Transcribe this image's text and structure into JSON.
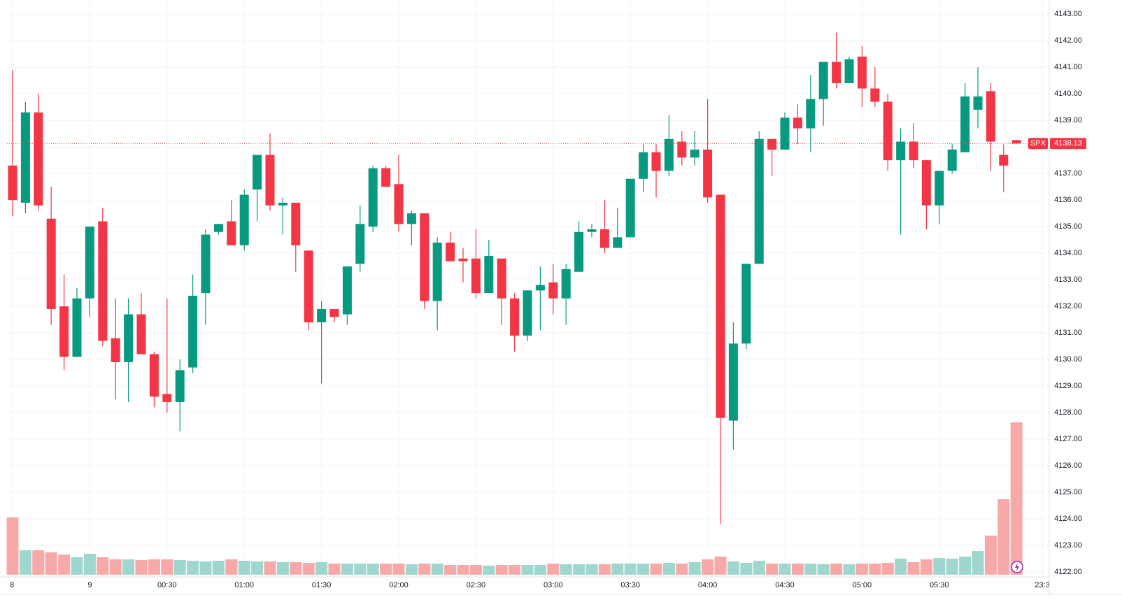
{
  "chart_data": {
    "type": "candlestick",
    "series": {
      "name": "SPX",
      "open": [
        4137.3,
        4135.9,
        4139.3,
        4135.3,
        4132.0,
        4130.1,
        4132.3,
        4135.2,
        4130.8,
        4129.9,
        4131.7,
        4130.2,
        4128.7,
        4128.4,
        4129.7,
        4132.5,
        4134.8,
        4135.2,
        4134.3,
        4136.4,
        4137.7,
        4135.8,
        4135.9,
        4134.1,
        4131.4,
        4131.9,
        4131.7,
        4133.6,
        4135.0,
        4137.2,
        4136.6,
        4135.1,
        4135.5,
        4132.2,
        4134.4,
        4133.8,
        4133.8,
        4132.5,
        4133.8,
        4132.3,
        4130.9,
        4132.6,
        4132.9,
        4132.3,
        4133.3,
        4134.8,
        4134.9,
        4134.2,
        4134.6,
        4136.8,
        4137.8,
        4137.1,
        4138.2,
        4137.6,
        4137.9,
        4136.2,
        4127.7,
        4130.6,
        4133.6,
        4138.3,
        4137.9,
        4139.1,
        4138.7,
        4139.8,
        4141.2,
        4140.4,
        4141.4,
        4140.2,
        4139.7,
        4137.5,
        4138.2,
        4137.5,
        4135.8,
        4137.1,
        4137.8,
        4139.4,
        4140.1,
        4137.7,
        4138.26
      ],
      "high": [
        4140.9,
        4139.7,
        4140.0,
        4136.5,
        4133.2,
        4132.7,
        4135.0,
        4135.7,
        4132.3,
        4132.3,
        4132.5,
        4130.3,
        4132.3,
        4130.0,
        4133.2,
        4134.9,
        4135.1,
        4136.0,
        4136.4,
        4137.7,
        4138.5,
        4136.1,
        4135.9,
        4134.1,
        4132.2,
        4131.9,
        4133.5,
        4135.8,
        4137.3,
        4137.3,
        4137.7,
        4135.6,
        4135.5,
        4134.6,
        4134.8,
        4134.2,
        4134.9,
        4134.5,
        4133.8,
        4132.5,
        4132.6,
        4133.5,
        4133.6,
        4133.6,
        4135.2,
        4135.1,
        4136.0,
        4135.7,
        4136.8,
        4138.1,
        4138.1,
        4139.2,
        4138.6,
        4138.6,
        4139.8,
        4136.2,
        4131.4,
        4133.6,
        4138.6,
        4138.3,
        4139.3,
        4139.6,
        4140.7,
        4141.2,
        4142.3,
        4141.4,
        4141.8,
        4141.0,
        4140.0,
        4138.7,
        4138.9,
        4137.5,
        4137.1,
        4138.1,
        4140.4,
        4141.0,
        4140.4,
        4138.1,
        4138.26
      ],
      "low": [
        4135.4,
        4135.5,
        4135.6,
        4131.3,
        4129.6,
        4130.1,
        4131.6,
        4130.5,
        4128.5,
        4128.4,
        4130.2,
        4128.2,
        4128.0,
        4127.3,
        4129.5,
        4131.3,
        4134.7,
        4134.3,
        4134.1,
        4135.2,
        4135.6,
        4134.7,
        4133.3,
        4131.1,
        4129.1,
        4131.4,
        4131.3,
        4133.3,
        4134.8,
        4136.5,
        4134.8,
        4134.3,
        4131.9,
        4131.1,
        4133.7,
        4132.9,
        4132.3,
        4132.5,
        4131.3,
        4130.3,
        4130.7,
        4131.1,
        4131.7,
        4131.3,
        4133.3,
        4134.6,
        4134.0,
        4134.2,
        4134.6,
        4136.3,
        4136.1,
        4136.9,
        4137.3,
        4137.3,
        4135.9,
        4123.8,
        4126.6,
        4130.4,
        4133.6,
        4136.9,
        4137.9,
        4138.1,
        4137.8,
        4138.8,
        4140.2,
        4140.4,
        4139.5,
        4139.5,
        4137.1,
        4134.7,
        4137.2,
        4134.9,
        4135.1,
        4137.0,
        4137.8,
        4138.7,
        4137.1,
        4136.3,
        4138.13
      ],
      "close": [
        4136.0,
        4139.3,
        4135.8,
        4131.9,
        4130.1,
        4132.3,
        4135.0,
        4130.7,
        4129.9,
        4131.7,
        4130.2,
        4128.6,
        4128.4,
        4129.6,
        4132.4,
        4134.7,
        4135.1,
        4134.3,
        4136.2,
        4137.7,
        4135.8,
        4135.9,
        4134.3,
        4131.4,
        4131.9,
        4131.6,
        4133.5,
        4135.1,
        4137.2,
        4136.5,
        4135.1,
        4135.5,
        4132.2,
        4134.4,
        4133.7,
        4133.7,
        4132.5,
        4133.9,
        4132.3,
        4130.9,
        4132.6,
        4132.8,
        4132.3,
        4133.4,
        4134.8,
        4134.9,
        4134.2,
        4134.6,
        4136.8,
        4137.8,
        4137.1,
        4138.3,
        4137.6,
        4137.9,
        4136.1,
        4127.8,
        4130.6,
        4133.6,
        4138.3,
        4137.9,
        4139.1,
        4138.7,
        4139.8,
        4141.2,
        4140.4,
        4141.3,
        4140.2,
        4139.7,
        4137.5,
        4138.2,
        4137.5,
        4135.8,
        4137.1,
        4137.9,
        4139.9,
        4139.9,
        4138.2,
        4137.3,
        4138.13
      ],
      "volume": [
        82,
        35,
        35,
        32,
        29,
        25,
        30,
        25,
        22,
        22,
        21,
        22,
        22,
        21,
        20,
        19,
        20,
        22,
        20,
        19,
        19,
        18,
        18,
        17,
        18,
        16,
        16,
        16,
        16,
        16,
        16,
        15,
        16,
        16,
        14,
        14,
        14,
        13,
        14,
        14,
        14,
        14,
        16,
        15,
        15,
        15,
        15,
        16,
        16,
        16,
        16,
        17,
        16,
        18,
        22,
        26,
        19,
        17,
        20,
        16,
        16,
        16,
        16,
        15,
        16,
        15,
        16,
        16,
        17,
        23,
        18,
        22,
        24,
        23,
        26,
        34,
        56,
        108,
        218
      ]
    },
    "up_color": "#089981",
    "down_color": "#f23645",
    "up_volume_color": "#9fd6cd",
    "down_volume_color": "#f7a9a7",
    "last_price": 4138.13,
    "ylim": [
      4121.82,
      4143.53
    ],
    "yticks": [
      {
        "value": 4122,
        "label": "4122.00"
      },
      {
        "value": 4123,
        "label": "4123.00"
      },
      {
        "value": 4124,
        "label": "4124.00"
      },
      {
        "value": 4125,
        "label": "4125.00"
      },
      {
        "value": 4126,
        "label": "4126.00"
      },
      {
        "value": 4127,
        "label": "4127.00"
      },
      {
        "value": 4128,
        "label": "4128.00"
      },
      {
        "value": 4129,
        "label": "4129.00"
      },
      {
        "value": 4130,
        "label": "4130.00"
      },
      {
        "value": 4131,
        "label": "4131.00"
      },
      {
        "value": 4132,
        "label": "4132.00"
      },
      {
        "value": 4133,
        "label": "4133.00"
      },
      {
        "value": 4134,
        "label": "4134.00"
      },
      {
        "value": 4135,
        "label": "4135.00"
      },
      {
        "value": 4136,
        "label": "4136.00"
      },
      {
        "value": 4137,
        "label": "4137.00"
      },
      {
        "value": 4138,
        "label": "4138.00"
      },
      {
        "value": 4139,
        "label": "4139.00"
      },
      {
        "value": 4140,
        "label": "4140.00"
      },
      {
        "value": 4141,
        "label": "4141.00"
      },
      {
        "value": 4142,
        "label": "4142.00"
      },
      {
        "value": 4143,
        "label": "4143.00"
      }
    ],
    "xtick_labels": [
      "8",
      "9",
      "00:30",
      "01:00",
      "01:30",
      "02:00",
      "02:30",
      "03:00",
      "03:30",
      "04:00",
      "04:30",
      "05:00",
      "05:30",
      "23:3"
    ],
    "grid": true
  }
}
